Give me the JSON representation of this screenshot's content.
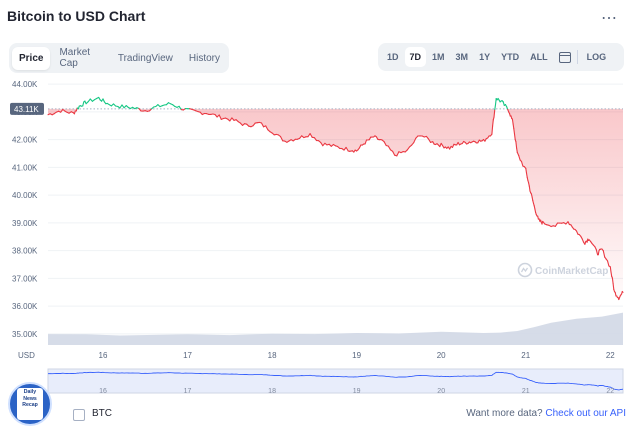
{
  "title": "Bitcoin to USD Chart",
  "more_icon": "more-dots-icon",
  "tabs": [
    {
      "label": "Price",
      "active": true
    },
    {
      "label": "Market Cap",
      "active": false
    },
    {
      "label": "TradingView",
      "active": false
    },
    {
      "label": "History",
      "active": false
    }
  ],
  "ranges": [
    {
      "label": "1D",
      "active": false
    },
    {
      "label": "7D",
      "active": true
    },
    {
      "label": "1M",
      "active": false
    },
    {
      "label": "3M",
      "active": false
    },
    {
      "label": "1Y",
      "active": false
    },
    {
      "label": "YTD",
      "active": false
    },
    {
      "label": "ALL",
      "active": false
    }
  ],
  "calendar_icon": "calendar-icon",
  "log_label": "LOG",
  "watermark": "CoinMarketCap",
  "legend": {
    "label": "BTC"
  },
  "footer": {
    "text": "Want more data?",
    "link": "Check out our API"
  },
  "logo_text": "Daily News Recap",
  "colors": {
    "up": "#16c784",
    "down": "#ea3943",
    "volume": "#cfd6e4",
    "accent": "#3861fb"
  },
  "chart_data": {
    "type": "line",
    "title": "Bitcoin to USD Chart",
    "ylabel": "USD",
    "ylim": [
      34600,
      44150
    ],
    "y_ticks": [
      "44.00K",
      "43.00K",
      "42.00K",
      "41.00K",
      "40.00K",
      "39.00K",
      "38.00K",
      "37.00K",
      "36.00K",
      "35.00K"
    ],
    "y_tick_values": [
      44000,
      43000,
      42000,
      41000,
      40000,
      39000,
      38000,
      37000,
      36000,
      35000
    ],
    "x_ticks": [
      "16",
      "17",
      "18",
      "19",
      "20",
      "21",
      "22"
    ],
    "x_tick_values": [
      16,
      17,
      18,
      19,
      20,
      21,
      22
    ],
    "xlim": [
      15.35,
      22.15
    ],
    "reference_price": 43110,
    "reference_label": "43.11K",
    "series": [
      {
        "name": "BTC",
        "x": [
          15.35,
          15.5,
          15.65,
          15.72,
          15.8,
          15.95,
          16.05,
          16.2,
          16.35,
          16.5,
          16.65,
          16.8,
          16.95,
          17.1,
          17.25,
          17.4,
          17.55,
          17.7,
          17.85,
          18.0,
          18.15,
          18.3,
          18.45,
          18.6,
          18.75,
          18.9,
          19.0,
          19.1,
          19.2,
          19.3,
          19.45,
          19.6,
          19.75,
          19.9,
          20.0,
          20.1,
          20.2,
          20.3,
          20.4,
          20.5,
          20.6,
          20.65,
          20.72,
          20.8,
          20.85,
          20.9,
          21.0,
          21.05,
          21.1,
          21.15,
          21.2,
          21.35,
          21.5,
          21.6,
          21.7,
          21.75,
          21.85,
          21.9,
          22.0,
          22.05,
          22.1,
          22.15
        ],
        "y": [
          42900,
          43050,
          42950,
          43200,
          43350,
          43500,
          43300,
          43200,
          43150,
          43050,
          43200,
          43300,
          43100,
          43000,
          42950,
          42800,
          42700,
          42500,
          42600,
          42300,
          41950,
          42050,
          42200,
          41850,
          41750,
          41650,
          41600,
          41900,
          42100,
          41950,
          41450,
          41600,
          42200,
          41900,
          41800,
          41700,
          41850,
          41900,
          41950,
          41950,
          42250,
          43500,
          43350,
          43050,
          42600,
          41500,
          40900,
          40200,
          39600,
          39100,
          39000,
          38900,
          39050,
          38700,
          38300,
          38450,
          37900,
          38050,
          37400,
          36500,
          36300,
          36500
        ]
      }
    ],
    "volume": {
      "x": [
        15.35,
        15.8,
        16.2,
        17.0,
        17.5,
        18.0,
        18.5,
        19.0,
        19.5,
        20.0,
        20.5,
        20.7,
        20.9,
        21.1,
        21.3,
        21.6,
        21.9,
        22.15
      ],
      "values": [
        0.55,
        0.5,
        0.48,
        0.5,
        0.5,
        0.53,
        0.55,
        0.56,
        0.58,
        0.62,
        0.6,
        0.58,
        0.7,
        0.85,
        1.1,
        1.25,
        1.4,
        1.55
      ]
    }
  }
}
